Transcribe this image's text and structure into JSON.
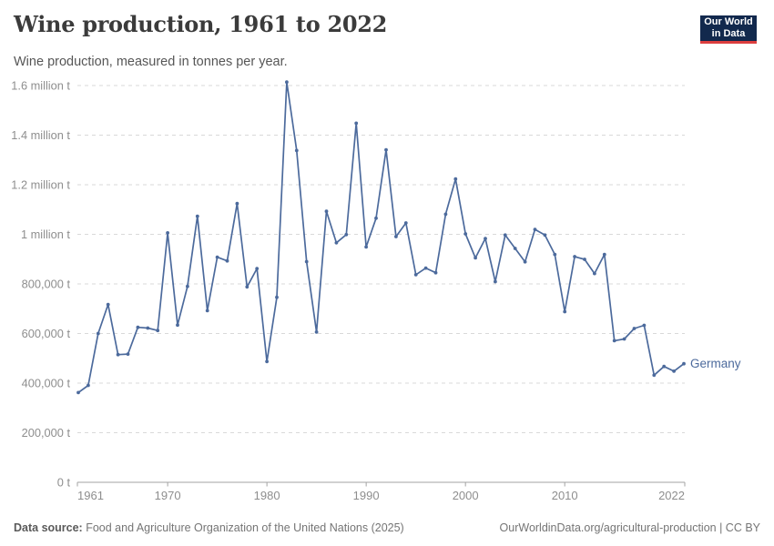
{
  "header": {
    "title": "Wine production, 1961 to 2022",
    "subtitle": "Wine production, measured in tonnes per year.",
    "logo": {
      "line1": "Our World",
      "line2": "in Data",
      "bg_color": "#12294d",
      "accent_color": "#dc3e3e"
    }
  },
  "chart_data": {
    "type": "line",
    "title": "Wine production, 1961 to 2022",
    "ylabel": "",
    "xlabel": "",
    "unit": "t",
    "grid": true,
    "legend_position": "end-of-line label",
    "ylim": [
      0,
      1600000
    ],
    "xlim": [
      1961,
      2022
    ],
    "ytick_values": [
      0,
      200000,
      400000,
      600000,
      800000,
      1000000,
      1200000,
      1400000,
      1600000
    ],
    "ytick_labels": [
      "0 t",
      "200,000 t",
      "400,000 t",
      "600,000 t",
      "800,000 t",
      "1 million t",
      "1.2 million t",
      "1.4 million t",
      "1.6 million t"
    ],
    "xtick_years": [
      1961,
      1970,
      1980,
      1990,
      2000,
      2010,
      2022
    ],
    "xtick_labels": [
      "1961",
      "1970",
      "1980",
      "1990",
      "2000",
      "2010",
      "2022"
    ],
    "series": [
      {
        "name": "Germany",
        "x": [
          1961,
          1962,
          1963,
          1964,
          1965,
          1966,
          1967,
          1968,
          1969,
          1970,
          1971,
          1972,
          1973,
          1974,
          1975,
          1976,
          1977,
          1978,
          1979,
          1980,
          1981,
          1982,
          1983,
          1984,
          1985,
          1986,
          1987,
          1988,
          1989,
          1990,
          1991,
          1992,
          1993,
          1994,
          1995,
          1996,
          1997,
          1998,
          1999,
          2000,
          2001,
          2002,
          2003,
          2004,
          2005,
          2006,
          2007,
          2008,
          2009,
          2010,
          2011,
          2012,
          2013,
          2014,
          2015,
          2016,
          2017,
          2018,
          2019,
          2020,
          2021,
          2022
        ],
        "values": [
          362000,
          391000,
          600000,
          717000,
          515000,
          517000,
          625000,
          622000,
          612000,
          1006000,
          634000,
          790000,
          1073000,
          692000,
          908000,
          893000,
          1124000,
          788000,
          862000,
          487000,
          746000,
          1614000,
          1338000,
          890000,
          606000,
          1093000,
          966000,
          999000,
          1448000,
          949000,
          1065000,
          1341000,
          991000,
          1046000,
          837000,
          864000,
          845000,
          1081000,
          1223000,
          1002000,
          905000,
          983000,
          809000,
          997000,
          943000,
          889000,
          1020000,
          997000,
          919000,
          688000,
          910000,
          899000,
          842000,
          919000,
          571000,
          578000,
          620000,
          633000,
          432000,
          467000,
          448000,
          478000
        ]
      }
    ],
    "colors": {
      "line": "#4C6A9C",
      "grid": "#d9d9d9",
      "axis": "#a3a3a3",
      "tick_text": "#8e8e8e"
    }
  },
  "footer": {
    "datasource_label": "Data source:",
    "datasource_text": " Food and Agriculture Organization of the United Nations (2025)",
    "link_text": "OurWorldinData.org/agricultural-production | CC BY"
  }
}
